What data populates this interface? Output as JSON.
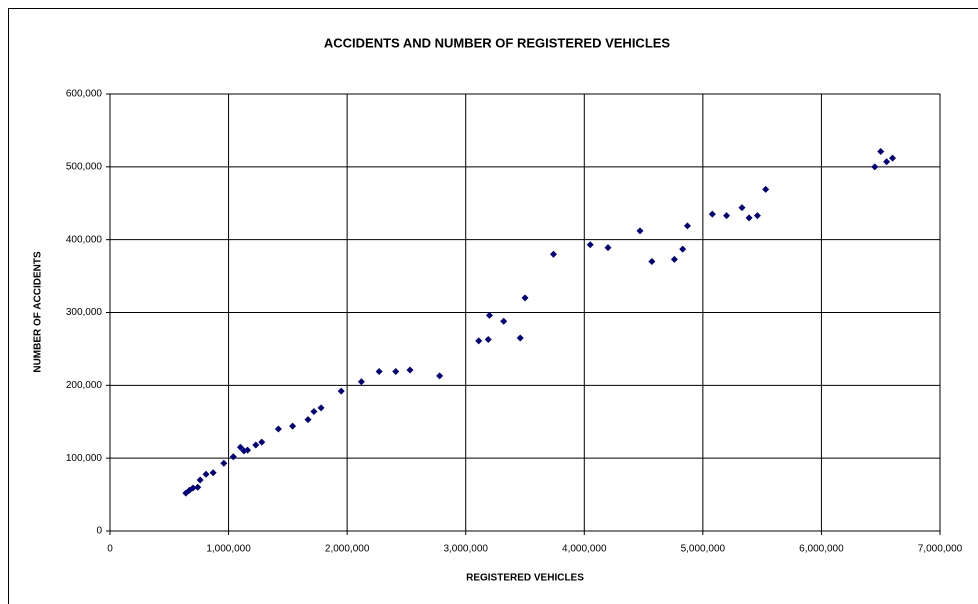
{
  "chart_data": {
    "type": "scatter",
    "title": "ACCIDENTS AND NUMBER OF REGISTERED VEHICLES",
    "x_label": "REGISTERED VEHICLES",
    "y_label": "NUMBER OF ACCIDENTS",
    "series": [
      {
        "color": "#000080",
        "x": [
          640000,
          670000,
          700000,
          740000,
          760000,
          810000,
          870000,
          960000,
          1040000,
          1100000,
          1130000,
          1160000,
          1230000,
          1280000,
          1420000,
          1540000,
          1670000,
          1720000,
          1780000,
          1950000,
          2120000,
          2270000,
          2410000,
          2530000,
          2780000,
          3110000,
          3190000,
          3200000,
          3320000,
          3460000,
          3500000,
          3740000,
          4050000,
          4200000,
          4470000,
          4570000,
          4760000,
          4830000,
          4870000,
          5080000,
          5200000,
          5330000,
          5390000,
          5460000,
          5530000,
          6450000,
          6500000,
          6550000,
          6600000
        ],
        "values": [
          52000,
          56000,
          59000,
          60000,
          70000,
          78000,
          80000,
          93000,
          102000,
          115000,
          110000,
          111000,
          118000,
          122000,
          140000,
          144000,
          153000,
          164000,
          169000,
          192000,
          205000,
          219000,
          219000,
          221000,
          213000,
          261000,
          263000,
          296000,
          288000,
          265000,
          320000,
          380000,
          393000,
          389000,
          412000,
          370000,
          373000,
          387000,
          419000,
          435000,
          433000,
          444000,
          430000,
          433000,
          469000,
          500000,
          521000,
          507000,
          512000
        ]
      }
    ],
    "xlim": [
      0,
      7000000
    ],
    "xticks": [
      0,
      {
        "value": 1000000,
        "label": "1,000,000"
      },
      {
        "value": 2000000,
        "label": "2,000,000"
      },
      {
        "value": 3000000,
        "label": "3,000,000"
      },
      {
        "value": 4000000,
        "label": "4,000,000"
      },
      {
        "value": 5000000,
        "label": "5,000,000"
      },
      {
        "value": 6000000,
        "label": "6,000,000"
      },
      {
        "value": 7000000,
        "label": "7,000,000"
      }
    ],
    "ylim": [
      0,
      600000
    ],
    "yticks": [
      0,
      {
        "value": 100000,
        "label": "100,000"
      },
      {
        "value": 200000,
        "label": "200,000"
      },
      {
        "value": 300000,
        "label": "300,000"
      },
      {
        "value": 400000,
        "label": "400,000"
      },
      {
        "value": 500000,
        "label": "500,000"
      },
      {
        "value": 600000,
        "label": "600,000"
      }
    ],
    "grid": true
  }
}
